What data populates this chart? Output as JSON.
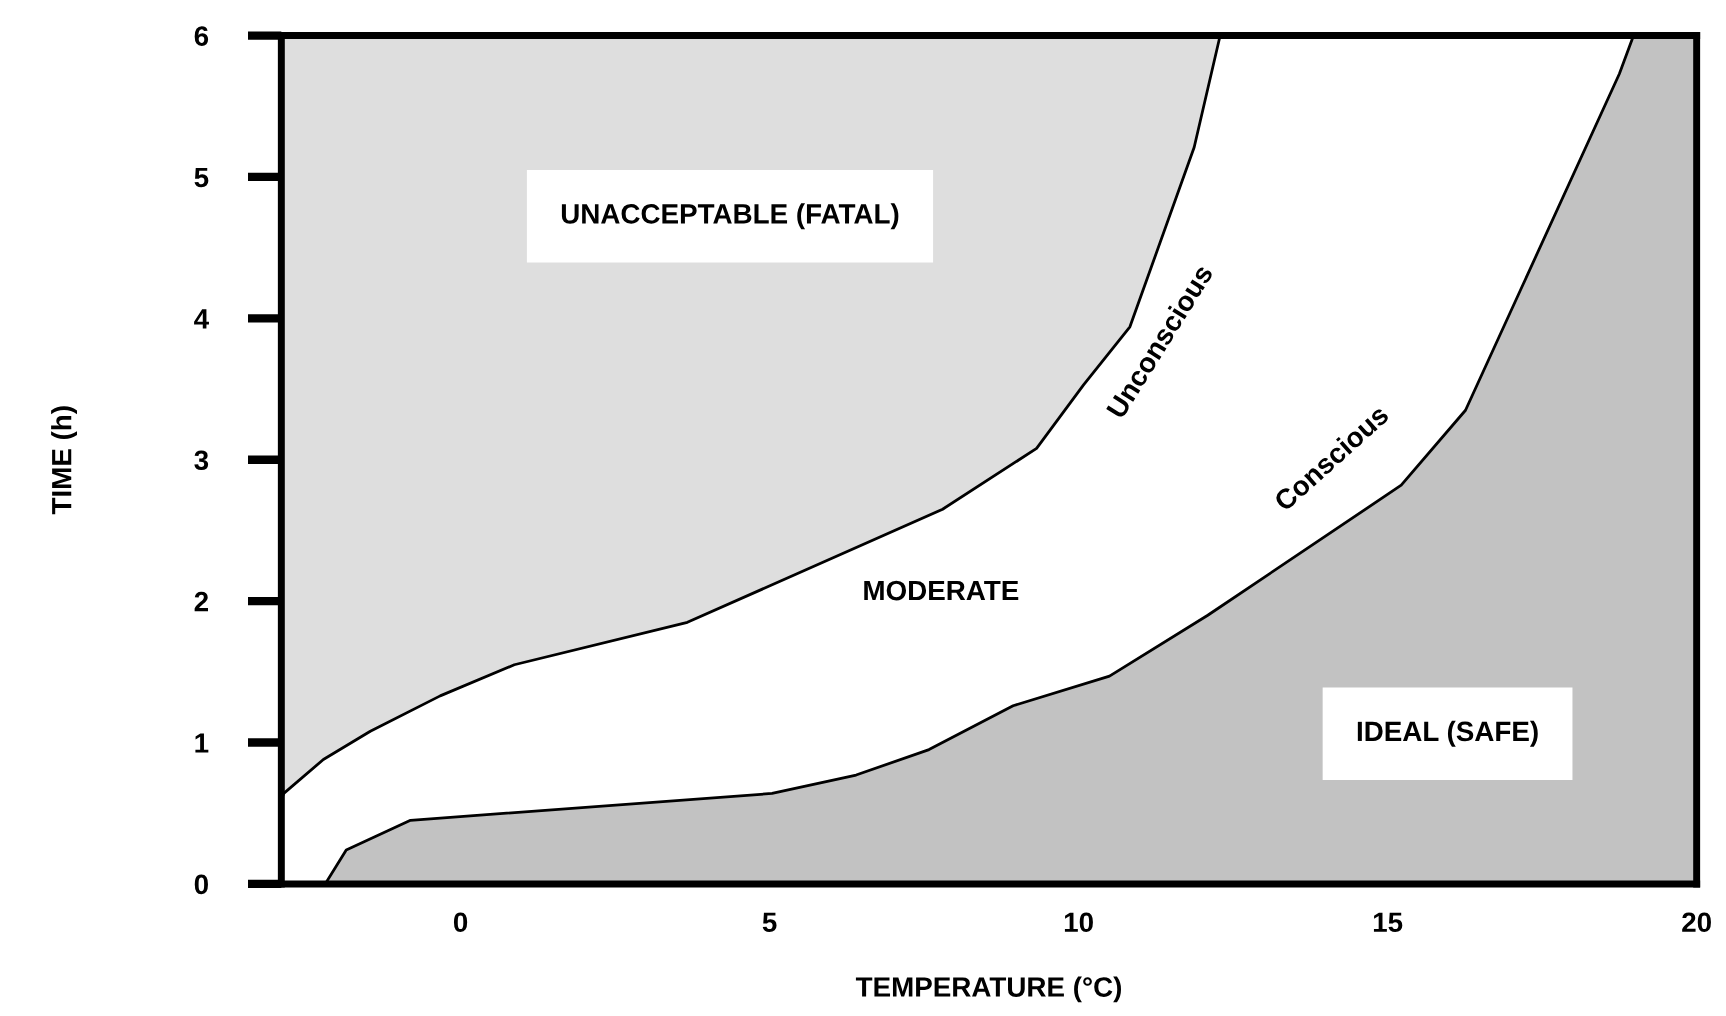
{
  "chart_data": {
    "type": "area",
    "xlabel": "TEMPERATURE (°C)",
    "ylabel": "TIME (h)",
    "series": [
      {
        "color": "#ffffff",
        "x": [
          -2.9,
          -2.86,
          -2.22,
          -1.46,
          -0.33,
          0.87,
          3.67,
          7.8,
          9.32,
          10.08,
          10.83,
          11.87,
          12.29,
          20
        ],
        "values": [
          0.6,
          0.64,
          0.88,
          1.08,
          1.33,
          1.55,
          1.85,
          2.65,
          3.08,
          3.53,
          3.94,
          5.21,
          6,
          6
        ]
      },
      {
        "color": "#c2c2c2",
        "x": [
          -2.19,
          -1.85,
          -0.81,
          5.04,
          6.4,
          7.58,
          8.94,
          10.5,
          12.09,
          15.22,
          16.26,
          18.75,
          18.97,
          20
        ],
        "values": [
          0,
          0.24,
          0.45,
          0.64,
          0.77,
          0.95,
          1.26,
          1.47,
          1.9,
          2.82,
          3.35,
          5.73,
          5.99,
          6
        ]
      }
    ],
    "annotations": [
      "UNACCEPTABLE (FATAL)",
      "MODERATE",
      "IDEAL (SAFE)",
      "Unconscious",
      "Conscious"
    ],
    "xlim": [
      -2.9,
      20
    ],
    "xticks": [
      0,
      5,
      10,
      15,
      20
    ],
    "ylim": [
      0,
      6
    ],
    "yticks": [
      0,
      1,
      2,
      3,
      4,
      5,
      6
    ],
    "grid": false,
    "legend": false
  }
}
